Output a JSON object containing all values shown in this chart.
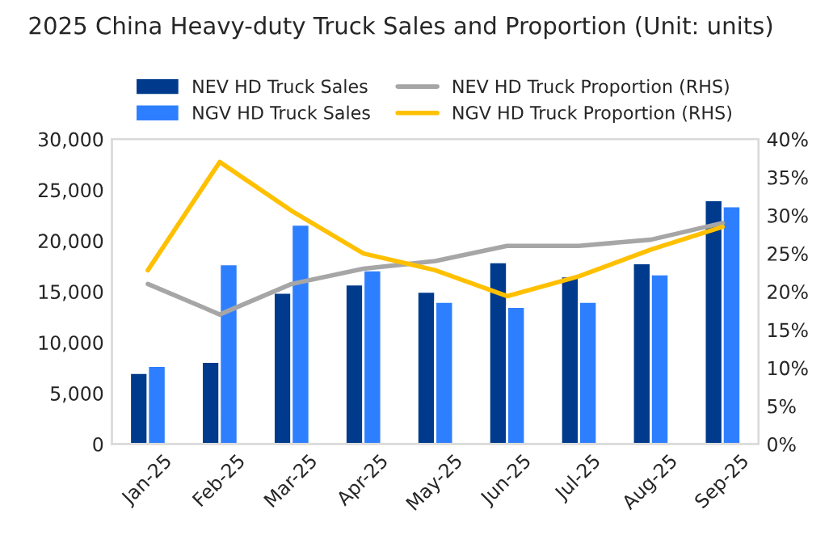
{
  "chart_data": {
    "type": "bar",
    "title": "2025 China Heavy-duty Truck Sales and Proportion (Unit: units)",
    "categories": [
      "Jan-25",
      "Feb-25",
      "Mar-25",
      "Apr-25",
      "May-25",
      "Jun-25",
      "Jul-25",
      "Aug-25",
      "Sep-25"
    ],
    "series": [
      {
        "name": "NEV HD Truck Sales",
        "color": "#003a8c",
        "values": [
          7000,
          8100,
          14900,
          15700,
          15000,
          17900,
          16500,
          17800,
          24000
        ]
      },
      {
        "name": "NGV HD Truck Sales",
        "color": "#2e7fff",
        "values": [
          7700,
          17700,
          21600,
          17100,
          14000,
          13500,
          14000,
          16700,
          23400
        ]
      },
      {
        "name": "NEV HD Truck Proportion (RHS)",
        "type": "line",
        "axis": "y2",
        "color": "#a6a6a6",
        "values": [
          21,
          17,
          21,
          23,
          24,
          26,
          26,
          26.8,
          29
        ]
      },
      {
        "name": "NGV HD Truck Proportion (RHS)",
        "type": "line",
        "axis": "y2",
        "color": "#ffc000",
        "values": [
          22.8,
          37,
          30.6,
          25,
          22.8,
          19.4,
          22,
          25.5,
          28.5
        ]
      }
    ],
    "ylim": [
      0,
      30000
    ],
    "yticks": [
      {
        "value": 0,
        "label": "0"
      },
      {
        "value": 5000,
        "label": "5,000"
      },
      {
        "value": 10000,
        "label": "10,000"
      },
      {
        "value": 15000,
        "label": "15,000"
      },
      {
        "value": 20000,
        "label": "20,000"
      },
      {
        "value": 25000,
        "label": "25,000"
      },
      {
        "value": 30000,
        "label": "30,000"
      }
    ],
    "y2lim": [
      0,
      40
    ],
    "y2ticks": [
      {
        "value": 0,
        "label": "0%"
      },
      {
        "value": 5,
        "label": "5%"
      },
      {
        "value": 10,
        "label": "10%"
      },
      {
        "value": 15,
        "label": "15%"
      },
      {
        "value": 20,
        "label": "20%"
      },
      {
        "value": 25,
        "label": "25%"
      },
      {
        "value": 30,
        "label": "30%"
      },
      {
        "value": 35,
        "label": "35%"
      },
      {
        "value": 40,
        "label": "40%"
      }
    ],
    "grid": false,
    "legend": "top"
  }
}
